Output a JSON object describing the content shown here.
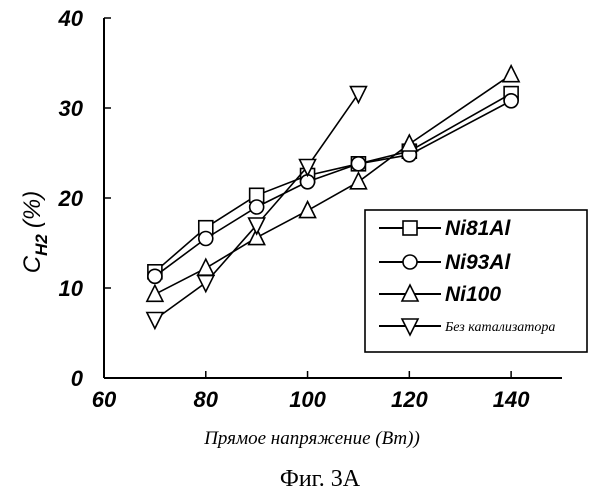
{
  "chart_data": {
    "type": "line",
    "xlabel": "Прямое напряжение (Вт))",
    "ylabel": "C",
    "ylabel_subscript": "H2",
    "ylabel_unit": "(%)",
    "xlim": [
      60,
      150
    ],
    "ylim": [
      0,
      40
    ],
    "x_ticks": [
      60,
      80,
      100,
      120,
      140
    ],
    "y_ticks": [
      0,
      10,
      20,
      30,
      40
    ],
    "grid": false,
    "legend_position": "lower-right",
    "series": [
      {
        "name": "Ni81Al",
        "marker": "square",
        "x": [
          70,
          80,
          90,
          100,
          110,
          120,
          140
        ],
        "y": [
          11.8,
          16.7,
          20.3,
          22.5,
          23.8,
          25.2,
          31.6
        ]
      },
      {
        "name": "Ni93Al",
        "marker": "circle",
        "x": [
          70,
          80,
          90,
          100,
          110,
          120,
          140
        ],
        "y": [
          11.3,
          15.5,
          19.0,
          21.8,
          23.8,
          24.8,
          30.8
        ]
      },
      {
        "name": "Ni100",
        "marker": "triangle-up",
        "x": [
          70,
          80,
          90,
          100,
          110,
          120,
          140
        ],
        "y": [
          9.3,
          12.2,
          15.6,
          18.6,
          21.8,
          26.0,
          33.7
        ]
      },
      {
        "name": "Без катализатора",
        "marker": "triangle-down",
        "x": [
          70,
          80,
          90,
          100,
          110
        ],
        "y": [
          6.5,
          10.6,
          17.0,
          23.5,
          31.6
        ]
      }
    ]
  },
  "caption": "Фиг. 3А"
}
